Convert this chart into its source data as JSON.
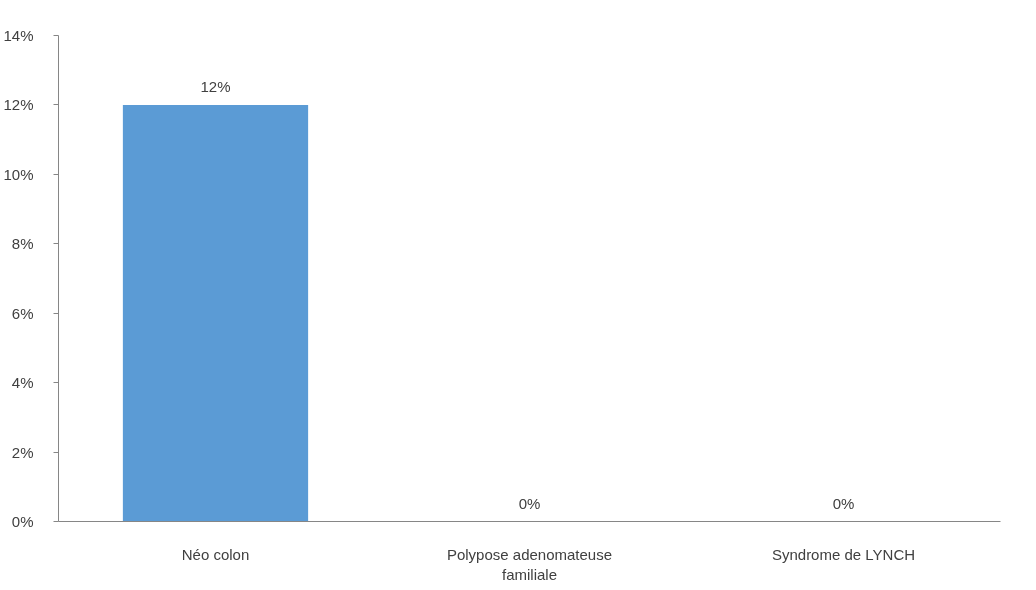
{
  "chart_data": {
    "type": "bar",
    "categories": [
      "Néo colon",
      "Polypose adenomateuse familiale",
      "Syndrome de LYNCH"
    ],
    "values": [
      12,
      0,
      0
    ],
    "color": "#5b9bd5",
    "value_labels": [
      "12%",
      "0%",
      "0%"
    ],
    "ylim": [
      0,
      14
    ],
    "yticks": [
      {
        "value": 0,
        "label": "0%"
      },
      {
        "value": 2,
        "label": "2%"
      },
      {
        "value": 4,
        "label": "4%"
      },
      {
        "value": 6,
        "label": "6%"
      },
      {
        "value": 8,
        "label": "8%"
      },
      {
        "value": 10,
        "label": "10%"
      },
      {
        "value": 12,
        "label": "12%"
      },
      {
        "value": 14,
        "label": "14%"
      }
    ],
    "grid": false
  }
}
